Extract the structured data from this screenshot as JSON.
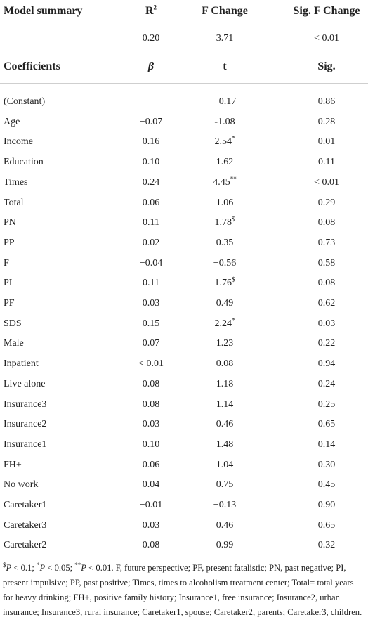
{
  "header": [
    "Model summary",
    {
      "text": "R",
      "sup": "2"
    },
    "F Change",
    "Sig. F Change"
  ],
  "summary": [
    "0.20",
    "3.71",
    "< 0.01"
  ],
  "coef_header": [
    "Coefficients",
    "β",
    "t",
    "Sig."
  ],
  "rows": [
    {
      "label": "(Constant)",
      "t": "−0.17",
      "sig": "0.86"
    },
    {
      "label": "Age",
      "beta": "−0.07",
      "t": "-1.08",
      "sig": "0.28"
    },
    {
      "label": "Income",
      "beta": "0.16",
      "t": "2.54",
      "t_sup": "*",
      "sig": "0.01"
    },
    {
      "label": "Education",
      "beta": "0.10",
      "t": "1.62",
      "sig": "0.11"
    },
    {
      "label": "Times",
      "beta": "0.24",
      "t": "4.45",
      "t_sup": "**",
      "sig": "< 0.01"
    },
    {
      "label": "Total",
      "beta": "0.06",
      "t": "1.06",
      "sig": "0.29"
    },
    {
      "label": "PN",
      "beta": "0.11",
      "t": "1.78",
      "t_sup": "$",
      "sig": "0.08"
    },
    {
      "label": "PP",
      "beta": "0.02",
      "t": "0.35",
      "sig": "0.73"
    },
    {
      "label": "F",
      "beta": "−0.04",
      "t": "−0.56",
      "sig": "0.58"
    },
    {
      "label": "PI",
      "beta": "0.11",
      "t": "1.76",
      "t_sup": "$",
      "sig": "0.08"
    },
    {
      "label": "PF",
      "beta": "0.03",
      "t": "0.49",
      "sig": "0.62"
    },
    {
      "label": "SDS",
      "beta": "0.15",
      "t": "2.24",
      "t_sup": "*",
      "sig": "0.03"
    },
    {
      "label": "Male",
      "beta": "0.07",
      "t": "1.23",
      "sig": "0.22"
    },
    {
      "label": "Inpatient",
      "beta": "< 0.01",
      "t": "0.08",
      "sig": "0.94"
    },
    {
      "label": "Live alone",
      "beta": "0.08",
      "t": "1.18",
      "sig": "0.24"
    },
    {
      "label": "Insurance3",
      "beta": "0.08",
      "t": "1.14",
      "sig": "0.25"
    },
    {
      "label": "Insurance2",
      "beta": "0.03",
      "t": "0.46",
      "sig": "0.65"
    },
    {
      "label": "Insurance1",
      "beta": "0.10",
      "t": "1.48",
      "sig": "0.14"
    },
    {
      "label": "FH+",
      "beta": "0.06",
      "t": "1.04",
      "sig": "0.30"
    },
    {
      "label": "No work",
      "beta": "0.04",
      "t": "0.75",
      "sig": "0.45"
    },
    {
      "label": "Caretaker1",
      "beta": "−0.01",
      "t": "−0.13",
      "sig": "0.90"
    },
    {
      "label": "Caretaker3",
      "beta": "0.03",
      "t": "0.46",
      "sig": "0.65"
    },
    {
      "label": "Caretaker2",
      "beta": "0.08",
      "t": "0.99",
      "sig": "0.32"
    }
  ],
  "footnote": {
    "marks": [
      {
        "sym": "$",
        "text": "P < 0.1;"
      },
      {
        "sym": "*",
        "text": "P < 0.05;"
      },
      {
        "sym": "**",
        "text": "P < 0.01."
      }
    ],
    "text": "F, future perspective; PF, present fatalistic; PN, past negative; PI, present impulsive; PP, past positive; Times, times to alcoholism treatment center; Total= total years for heavy drinking; FH+, positive family history; Insurance1, free insurance; Insurance2, urban insurance; Insurance3, rural insurance; Caretaker1, spouse; Caretaker2, parents; Caretaker3, children."
  }
}
